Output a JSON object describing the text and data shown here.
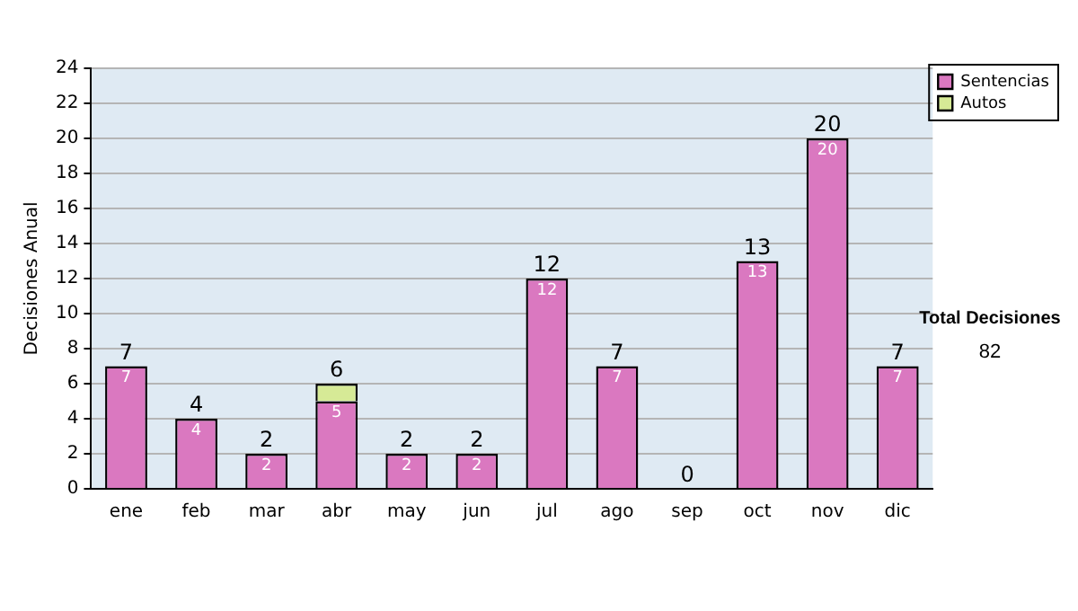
{
  "chart_data": {
    "type": "bar",
    "stacked": true,
    "ylabel": "Decisiones Anual",
    "categories": [
      "ene",
      "feb",
      "mar",
      "abr",
      "may",
      "jun",
      "jul",
      "ago",
      "sep",
      "oct",
      "nov",
      "dic"
    ],
    "series": [
      {
        "name": "Sentencias",
        "color": "#da78c0",
        "values": [
          7,
          4,
          2,
          5,
          2,
          2,
          12,
          7,
          0,
          13,
          20,
          7
        ],
        "value_labels": [
          "7",
          "4",
          "2",
          "5",
          "2",
          "2",
          "12",
          "7",
          null,
          "13",
          "20",
          "7"
        ]
      },
      {
        "name": "Autos",
        "color": "#d6ea96",
        "values": [
          0,
          0,
          0,
          1,
          0,
          0,
          0,
          0,
          0,
          0,
          0,
          0
        ]
      }
    ],
    "totals": [
      "7",
      "4",
      "2",
      "6",
      "2",
      "2",
      "12",
      "7",
      "0",
      "13",
      "20",
      "7"
    ],
    "ylim": [
      0,
      24
    ],
    "yticks": [
      0,
      2,
      4,
      6,
      8,
      10,
      12,
      14,
      16,
      18,
      20,
      22,
      24
    ],
    "grid": "y",
    "legend": "right",
    "annotations": [
      "Total Decisiones",
      "82"
    ]
  }
}
